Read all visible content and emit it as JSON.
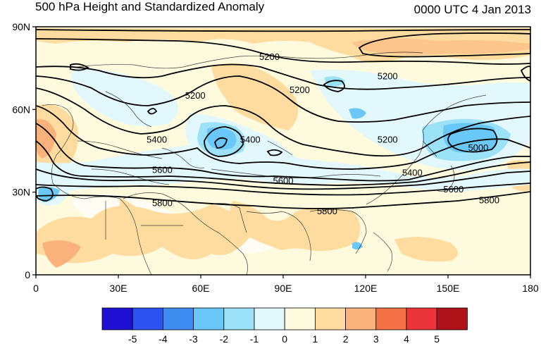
{
  "title": "500 hPa Height and Standardized Anomaly",
  "timestamp": "0000 UTC 4 Jan 2013",
  "map": {
    "lon_range": [
      0,
      180
    ],
    "lat_range": [
      0,
      90
    ],
    "lon_ticks": [
      {
        "value": 0,
        "label": "0"
      },
      {
        "value": 30,
        "label": "30E"
      },
      {
        "value": 60,
        "label": "60E"
      },
      {
        "value": 90,
        "label": "90E"
      },
      {
        "value": 120,
        "label": "120E"
      },
      {
        "value": 150,
        "label": "150E"
      },
      {
        "value": 180,
        "label": "180"
      }
    ],
    "lat_ticks": [
      {
        "value": 0,
        "label": "0"
      },
      {
        "value": 30,
        "label": "30N"
      },
      {
        "value": 60,
        "label": "60N"
      },
      {
        "value": 90,
        "label": "90N"
      }
    ],
    "contour_labels": [
      {
        "text": "5200",
        "lon": 85,
        "lat": 79
      },
      {
        "text": "5200",
        "lon": 128,
        "lat": 72
      },
      {
        "text": "5200",
        "lon": 58,
        "lat": 65
      },
      {
        "text": "5200",
        "lon": 96,
        "lat": 67
      },
      {
        "text": "5400",
        "lon": 44,
        "lat": 49
      },
      {
        "text": "5400",
        "lon": 78,
        "lat": 49
      },
      {
        "text": "5200",
        "lon": 128,
        "lat": 49
      },
      {
        "text": "5000",
        "lon": 161,
        "lat": 46
      },
      {
        "text": "5600",
        "lon": 46,
        "lat": 38
      },
      {
        "text": "5600",
        "lon": 90,
        "lat": 34
      },
      {
        "text": "5400",
        "lon": 137,
        "lat": 37
      },
      {
        "text": "5600",
        "lon": 152,
        "lat": 31
      },
      {
        "text": "5800",
        "lon": 46,
        "lat": 26
      },
      {
        "text": "5800",
        "lon": 106,
        "lat": 23
      },
      {
        "text": "5800",
        "lon": 165,
        "lat": 27
      }
    ]
  },
  "colorbar": {
    "colors": [
      "#1e0fd2",
      "#2c52ef",
      "#3e8cf0",
      "#69c8f7",
      "#9be1f8",
      "#e3f8fc",
      "#fefade",
      "#fedc9f",
      "#f9b27b",
      "#f47146",
      "#ec353a",
      "#b0121a"
    ],
    "labels": [
      "-5",
      "-4",
      "-3",
      "-2",
      "-1",
      "0",
      "1",
      "2",
      "3",
      "4",
      "5"
    ]
  }
}
